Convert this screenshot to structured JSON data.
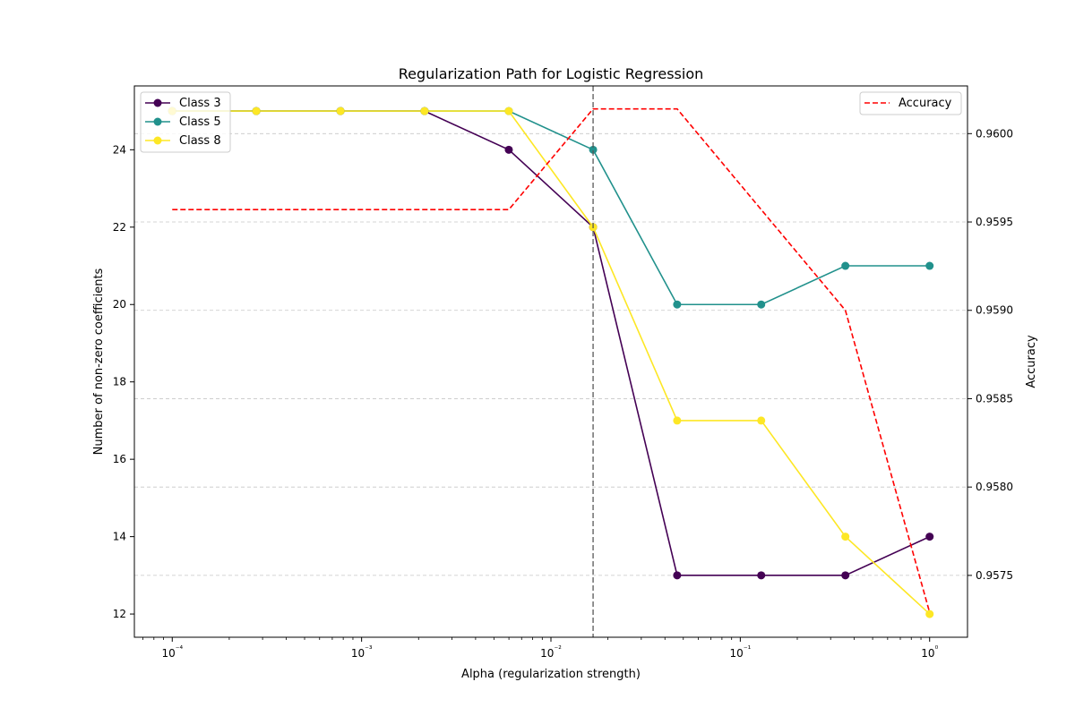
{
  "chart_data": {
    "type": "line",
    "title": "Regularization Path for Logistic Regression",
    "xlabel": "Alpha (regularization strength)",
    "ylabel_left": "Number of non-zero coefficients",
    "ylabel_right": "Accuracy",
    "x_scale": "log",
    "x": [
      0.0001,
      0.000278,
      0.000774,
      0.00215,
      0.00599,
      0.0167,
      0.0464,
      0.129,
      0.359,
      1.0
    ],
    "x_tick_labels": [
      "10⁻⁴",
      "10⁻³",
      "10⁻²",
      "10⁻¹",
      "10⁰"
    ],
    "ylim_left": [
      11.4,
      25.65
    ],
    "yticks_left": [
      "12",
      "14",
      "16",
      "18",
      "20",
      "22",
      "24"
    ],
    "ylim_right": [
      0.95715,
      0.96027
    ],
    "yticks_right": [
      "0.9575",
      "0.9580",
      "0.9585",
      "0.9590",
      "0.9595",
      "0.9600"
    ],
    "vertical_line_x": 0.0167,
    "grid": "horizontal dashed (right axis)",
    "series": [
      {
        "name": "Class 3",
        "axis": "left",
        "color": "#440154",
        "marker": "circle",
        "values": [
          25,
          25,
          25,
          25,
          24,
          22,
          13,
          13,
          13,
          14
        ]
      },
      {
        "name": "Class 5",
        "axis": "left",
        "color": "#21918c",
        "marker": "circle",
        "values": [
          25,
          25,
          25,
          25,
          25,
          24,
          20,
          20,
          21,
          21
        ]
      },
      {
        "name": "Class 8",
        "axis": "left",
        "color": "#fde725",
        "marker": "circle",
        "values": [
          25,
          25,
          25,
          25,
          25,
          22,
          17,
          17,
          14,
          12
        ]
      },
      {
        "name": "Accuracy",
        "axis": "right",
        "color": "#ff0000",
        "style": "dashed",
        "values": [
          0.95957,
          0.95957,
          0.95957,
          0.95957,
          0.95957,
          0.96014,
          0.96014,
          0.95957,
          0.959,
          0.95729
        ]
      }
    ],
    "legend_left": "upper-left",
    "legend_right": "upper-right"
  }
}
